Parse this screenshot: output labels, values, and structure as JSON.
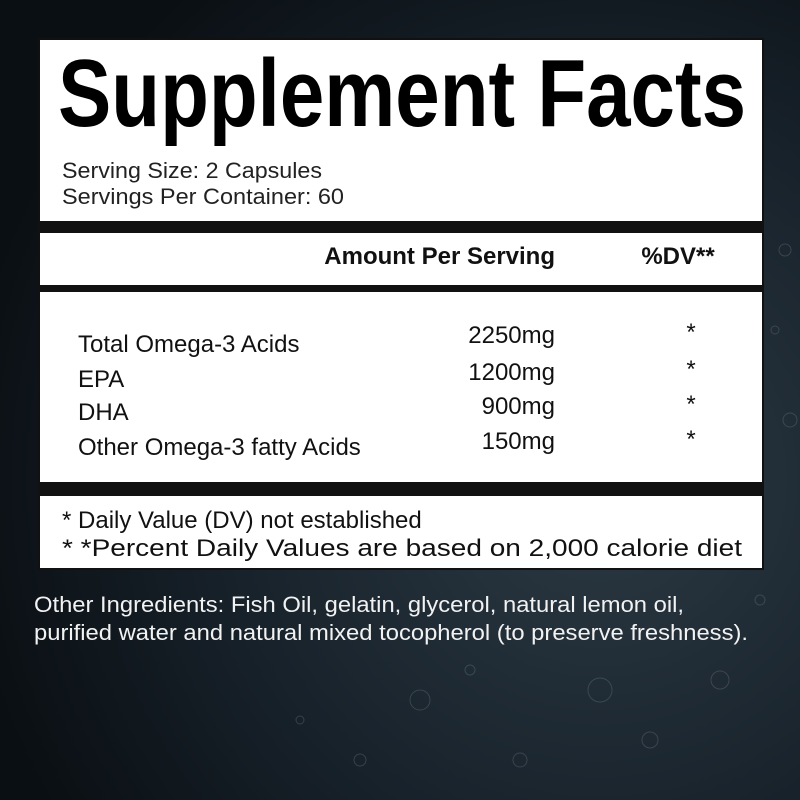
{
  "header": {
    "title": "Supplement Facts",
    "serving_size": "Serving Size: 2 Capsules",
    "servings_per_container": "Servings Per Container: 60"
  },
  "table": {
    "columns": [
      "Amount Per Serving",
      "%DV**"
    ],
    "rows": [
      [
        "Total Omega-3 Acids",
        "2250mg",
        "*"
      ],
      [
        "EPA",
        "1200mg",
        "*"
      ],
      [
        "DHA",
        "900mg",
        "*"
      ],
      [
        "Other Omega-3 fatty Acids",
        "150mg",
        "*"
      ]
    ]
  },
  "footnotes": [
    "* Daily Value (DV) not established",
    "* *Percent Daily Values are based on 2,000 calorie diet"
  ],
  "other_ingredients": [
    "Other Ingredients: Fish Oil, gelatin, glycerol, natural lemon oil,",
    "purified water and natural mixed tocopherol (to preserve freshness)."
  ]
}
